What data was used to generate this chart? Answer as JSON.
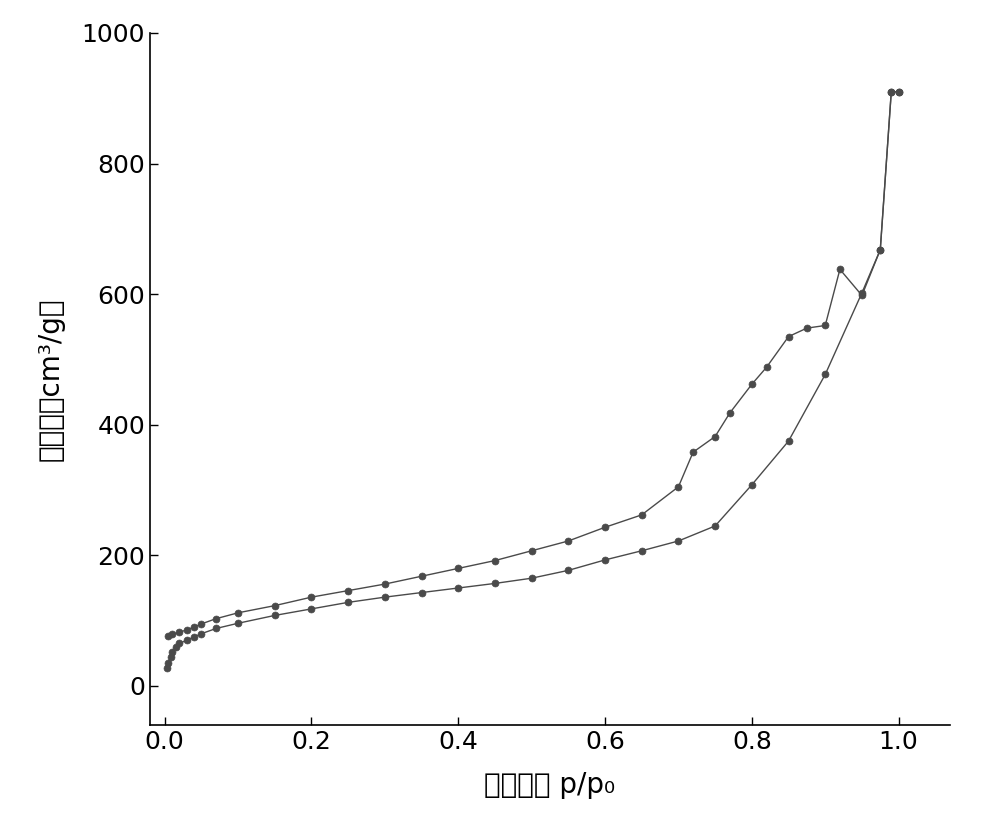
{
  "adsorption_x": [
    0.003,
    0.005,
    0.008,
    0.01,
    0.015,
    0.02,
    0.03,
    0.04,
    0.05,
    0.07,
    0.1,
    0.15,
    0.2,
    0.25,
    0.3,
    0.35,
    0.4,
    0.45,
    0.5,
    0.55,
    0.6,
    0.65,
    0.7,
    0.75,
    0.8,
    0.85,
    0.9,
    0.95,
    0.975,
    0.99,
    1.0
  ],
  "adsorption_y": [
    28,
    35,
    45,
    52,
    60,
    65,
    70,
    75,
    80,
    88,
    96,
    108,
    118,
    128,
    136,
    143,
    150,
    157,
    165,
    177,
    193,
    207,
    222,
    245,
    308,
    375,
    477,
    602,
    668,
    910,
    910
  ],
  "desorption_x": [
    1.0,
    0.99,
    0.975,
    0.95,
    0.92,
    0.9,
    0.875,
    0.85,
    0.82,
    0.8,
    0.77,
    0.75,
    0.72,
    0.7,
    0.65,
    0.6,
    0.55,
    0.5,
    0.45,
    0.4,
    0.35,
    0.3,
    0.25,
    0.2,
    0.15,
    0.1,
    0.07,
    0.05,
    0.04,
    0.03,
    0.02,
    0.01,
    0.005
  ],
  "desorption_y": [
    910,
    910,
    668,
    598,
    638,
    552,
    548,
    535,
    488,
    462,
    418,
    382,
    358,
    305,
    262,
    243,
    222,
    207,
    192,
    180,
    168,
    156,
    146,
    136,
    123,
    112,
    103,
    95,
    90,
    86,
    82,
    79,
    76
  ],
  "xlabel": "相对压力 p/p₀",
  "ylabel": "吸附量（cm³/g）",
  "xlim": [
    -0.02,
    1.07
  ],
  "ylim": [
    -60,
    1000
  ],
  "xticks": [
    0.0,
    0.2,
    0.4,
    0.6,
    0.8,
    1.0
  ],
  "yticks": [
    0,
    200,
    400,
    600,
    800,
    1000
  ],
  "line_color": "#4a4a4a",
  "marker_color": "#4a4a4a",
  "marker_size": 5,
  "line_width": 1.0,
  "xlabel_fontsize": 20,
  "ylabel_fontsize": 20,
  "tick_fontsize": 18,
  "background_color": "#ffffff"
}
